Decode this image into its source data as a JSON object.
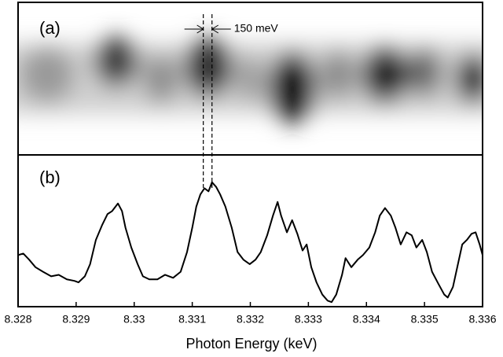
{
  "chart_data": [
    {
      "type": "image",
      "panel_label": "(a)",
      "annotation": "150 meV",
      "marker_x": [
        8.33119,
        8.33134
      ]
    },
    {
      "type": "line",
      "panel_label": "(b)",
      "xlabel": "Photon Energy (keV)",
      "color": "#000000",
      "xlim": [
        8.328,
        8.336
      ],
      "ylim": [
        0,
        1
      ],
      "xticks": [
        8.328,
        8.329,
        8.33,
        8.331,
        8.332,
        8.333,
        8.334,
        8.335,
        8.336
      ],
      "x": [
        8.328,
        8.32809,
        8.32819,
        8.3283,
        8.32843,
        8.32857,
        8.3287,
        8.32884,
        8.32897,
        8.32904,
        8.32915,
        8.32924,
        8.32934,
        8.32945,
        8.32954,
        8.32962,
        8.32972,
        8.32979,
        8.32985,
        8.32995,
        8.33006,
        8.33015,
        8.33026,
        8.3304,
        8.33053,
        8.33067,
        8.3308,
        8.33091,
        8.331,
        8.33107,
        8.33114,
        8.33121,
        8.33128,
        8.33134,
        8.33141,
        8.33148,
        8.33157,
        8.33168,
        8.33178,
        8.33188,
        8.33199,
        8.33209,
        8.33218,
        8.33229,
        8.33239,
        8.33247,
        8.33253,
        8.33263,
        8.33272,
        8.33281,
        8.3329,
        8.33297,
        8.33305,
        8.33314,
        8.33324,
        8.33333,
        8.3334,
        8.33348,
        8.33358,
        8.33364,
        8.33374,
        8.33385,
        8.33394,
        8.33405,
        8.33415,
        8.33423,
        8.33432,
        8.33442,
        8.3345,
        8.33459,
        8.33469,
        8.33478,
        8.33486,
        8.33496,
        8.33504,
        8.33513,
        8.33524,
        8.33534,
        8.3354,
        8.33549,
        8.33557,
        8.33565,
        8.33573,
        8.33581,
        8.33588,
        8.33595,
        8.336
      ],
      "values": [
        0.34,
        0.35,
        0.31,
        0.26,
        0.23,
        0.2,
        0.21,
        0.18,
        0.17,
        0.16,
        0.2,
        0.28,
        0.44,
        0.54,
        0.61,
        0.63,
        0.68,
        0.63,
        0.52,
        0.39,
        0.28,
        0.2,
        0.18,
        0.18,
        0.21,
        0.19,
        0.23,
        0.36,
        0.52,
        0.66,
        0.74,
        0.78,
        0.76,
        0.82,
        0.79,
        0.74,
        0.66,
        0.52,
        0.36,
        0.31,
        0.28,
        0.31,
        0.36,
        0.47,
        0.6,
        0.69,
        0.6,
        0.49,
        0.57,
        0.48,
        0.37,
        0.41,
        0.26,
        0.16,
        0.08,
        0.04,
        0.03,
        0.08,
        0.21,
        0.32,
        0.26,
        0.31,
        0.34,
        0.39,
        0.49,
        0.6,
        0.65,
        0.6,
        0.52,
        0.41,
        0.49,
        0.47,
        0.39,
        0.44,
        0.36,
        0.23,
        0.15,
        0.08,
        0.06,
        0.13,
        0.27,
        0.41,
        0.44,
        0.48,
        0.49,
        0.41,
        0.34
      ]
    }
  ]
}
